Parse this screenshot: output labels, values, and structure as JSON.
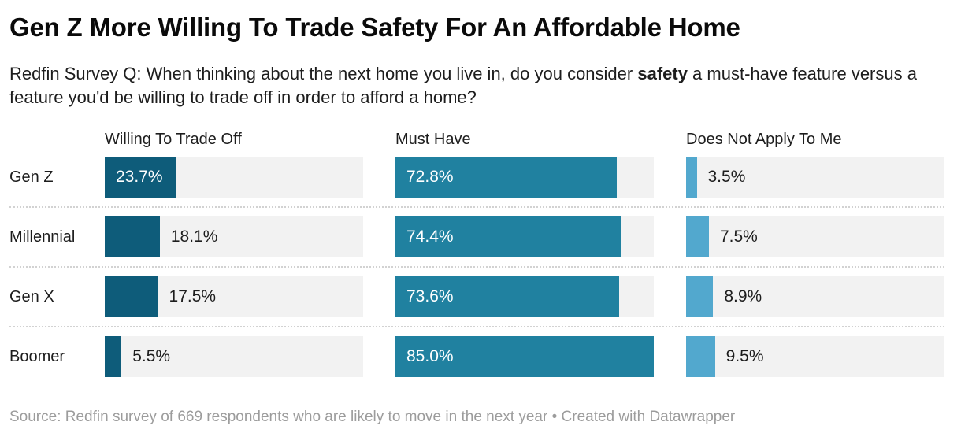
{
  "title": "Gen Z More Willing To Trade Safety For An Affordable Home",
  "subtitle": {
    "before_bold": "Redfin Survey Q: When thinking about the next home you live in, do you consider ",
    "bold": "safety",
    "after_bold": " a must-have feature versus a feature you'd be willing to trade off in order to afford a home?"
  },
  "footer": "Source: Redfin survey of 669 respondents who are likely to move in the next year • Created with Datawrapper",
  "colors": {
    "background": "#ffffff",
    "track": "#f2f2f2",
    "separator": "#d2d2d2",
    "text": "#1d1d1d",
    "footer_text": "#9c9c9c",
    "value_inside": "#ffffff"
  },
  "chart_data": {
    "type": "bar",
    "subtype": "horizontal-split-bars",
    "title": "Gen Z More Willing To Trade Safety For An Affordable Home",
    "categories": [
      "Gen Z",
      "Millennial",
      "Gen X",
      "Boomer"
    ],
    "series": [
      {
        "name": "Willing To Trade Off",
        "color": "#0e5c7a",
        "values": [
          23.7,
          18.1,
          17.5,
          5.5
        ]
      },
      {
        "name": "Must Have",
        "color": "#2081a0",
        "values": [
          72.8,
          74.4,
          73.6,
          85.0
        ]
      },
      {
        "name": "Does Not Apply To Me",
        "color": "#52a8ce",
        "values": [
          3.5,
          7.5,
          8.9,
          9.5
        ]
      }
    ],
    "value_suffix": "%",
    "value_decimals": 1,
    "scale_max": 85.0,
    "grid": false,
    "legend_position": "column-headers"
  }
}
